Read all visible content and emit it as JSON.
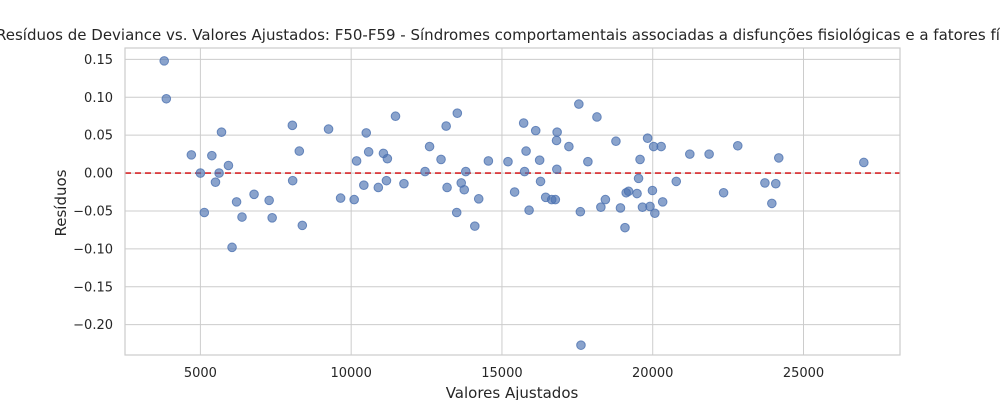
{
  "chart_data": {
    "type": "scatter",
    "title": "Resíduos de Deviance vs. Valores Ajustados: F50-F59 - Síndromes comportamentais associadas a disfunções fisiológicas e a fatores físicos",
    "xlabel": "Valores Ajustados",
    "ylabel": "Resíduos",
    "xlim": [
      2500,
      28200
    ],
    "ylim": [
      -0.24,
      0.165
    ],
    "xticks": [
      5000,
      10000,
      15000,
      20000,
      25000
    ],
    "xtick_labels": [
      "5000",
      "10000",
      "15000",
      "20000",
      "25000"
    ],
    "yticks": [
      -0.2,
      -0.15,
      -0.1,
      -0.05,
      0.0,
      0.05,
      0.1,
      0.15
    ],
    "ytick_labels": [
      "−0.20",
      "−0.15",
      "−0.10",
      "−0.05",
      "0.00",
      "0.05",
      "0.10",
      "0.15"
    ],
    "grid": true,
    "reference_line_y": 0.0,
    "point_color": "#4c72b0",
    "reference_line_color": "#d62728",
    "points": [
      [
        3800,
        0.148
      ],
      [
        3870,
        0.098
      ],
      [
        4700,
        0.024
      ],
      [
        5000,
        0.0
      ],
      [
        5130,
        -0.052
      ],
      [
        5380,
        0.023
      ],
      [
        5500,
        -0.012
      ],
      [
        5620,
        0.0
      ],
      [
        5700,
        0.054
      ],
      [
        5930,
        0.01
      ],
      [
        6050,
        -0.098
      ],
      [
        6200,
        -0.038
      ],
      [
        6380,
        -0.058
      ],
      [
        6780,
        -0.028
      ],
      [
        7280,
        -0.036
      ],
      [
        7380,
        -0.059
      ],
      [
        8050,
        0.063
      ],
      [
        8060,
        -0.01
      ],
      [
        8280,
        0.029
      ],
      [
        8380,
        -0.069
      ],
      [
        9250,
        0.058
      ],
      [
        9650,
        -0.033
      ],
      [
        10100,
        -0.035
      ],
      [
        10180,
        0.016
      ],
      [
        10420,
        -0.016
      ],
      [
        10500,
        0.053
      ],
      [
        10580,
        0.028
      ],
      [
        10900,
        -0.019
      ],
      [
        11070,
        0.026
      ],
      [
        11170,
        -0.01
      ],
      [
        11200,
        0.019
      ],
      [
        11470,
        0.075
      ],
      [
        11750,
        -0.014
      ],
      [
        12450,
        0.002
      ],
      [
        12600,
        0.035
      ],
      [
        12980,
        0.018
      ],
      [
        13150,
        0.062
      ],
      [
        13180,
        -0.019
      ],
      [
        13500,
        -0.052
      ],
      [
        13520,
        0.079
      ],
      [
        13650,
        -0.013
      ],
      [
        13750,
        -0.022
      ],
      [
        13800,
        0.002
      ],
      [
        14100,
        -0.07
      ],
      [
        14230,
        -0.034
      ],
      [
        14550,
        0.016
      ],
      [
        15200,
        0.015
      ],
      [
        15420,
        -0.025
      ],
      [
        15720,
        0.066
      ],
      [
        15750,
        0.002
      ],
      [
        15800,
        0.029
      ],
      [
        15900,
        -0.049
      ],
      [
        16120,
        0.056
      ],
      [
        16250,
        0.017
      ],
      [
        16280,
        -0.011
      ],
      [
        16450,
        -0.032
      ],
      [
        16650,
        -0.035
      ],
      [
        16770,
        -0.035
      ],
      [
        16810,
        0.043
      ],
      [
        16830,
        0.054
      ],
      [
        16820,
        0.005
      ],
      [
        17220,
        0.035
      ],
      [
        17550,
        0.091
      ],
      [
        17600,
        -0.051
      ],
      [
        17620,
        -0.227
      ],
      [
        17850,
        0.015
      ],
      [
        18150,
        0.074
      ],
      [
        18280,
        -0.045
      ],
      [
        18430,
        -0.035
      ],
      [
        18780,
        0.042
      ],
      [
        18930,
        -0.046
      ],
      [
        19080,
        -0.072
      ],
      [
        19120,
        -0.026
      ],
      [
        19200,
        -0.024
      ],
      [
        19480,
        -0.027
      ],
      [
        19530,
        -0.007
      ],
      [
        19580,
        0.018
      ],
      [
        19660,
        -0.045
      ],
      [
        19830,
        0.046
      ],
      [
        19910,
        -0.044
      ],
      [
        19990,
        -0.023
      ],
      [
        20030,
        0.035
      ],
      [
        20070,
        -0.053
      ],
      [
        20280,
        0.035
      ],
      [
        20330,
        -0.038
      ],
      [
        20780,
        -0.011
      ],
      [
        21230,
        0.025
      ],
      [
        21870,
        0.025
      ],
      [
        22350,
        -0.026
      ],
      [
        22820,
        0.036
      ],
      [
        23720,
        -0.013
      ],
      [
        23950,
        -0.04
      ],
      [
        24080,
        -0.014
      ],
      [
        24180,
        0.02
      ],
      [
        27000,
        0.014
      ]
    ]
  }
}
